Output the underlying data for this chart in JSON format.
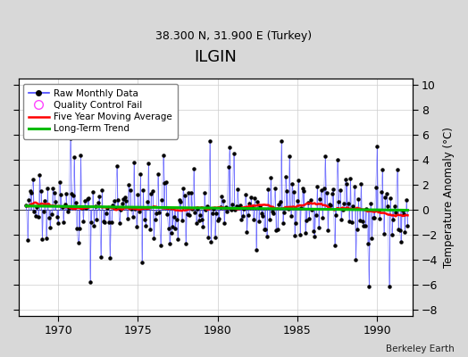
{
  "title": "ILGIN",
  "subtitle": "38.300 N, 31.900 E (Turkey)",
  "ylabel": "Temperature Anomaly (°C)",
  "credit": "Berkeley Earth",
  "xlim": [
    1967.5,
    1992.2
  ],
  "ylim": [
    -8.5,
    10.5
  ],
  "yticks": [
    -8,
    -6,
    -4,
    -2,
    0,
    2,
    4,
    6,
    8,
    10
  ],
  "xticks": [
    1970,
    1975,
    1980,
    1985,
    1990
  ],
  "bg_color": "#d8d8d8",
  "plot_bg_color": "#ffffff",
  "raw_line_color": "#4444ff",
  "raw_marker_color": "#000000",
  "qc_fail_color": "#ff44ff",
  "moving_avg_color": "#ff0000",
  "trend_color": "#00bb00",
  "grid_color": "#cccccc",
  "seed": 17
}
